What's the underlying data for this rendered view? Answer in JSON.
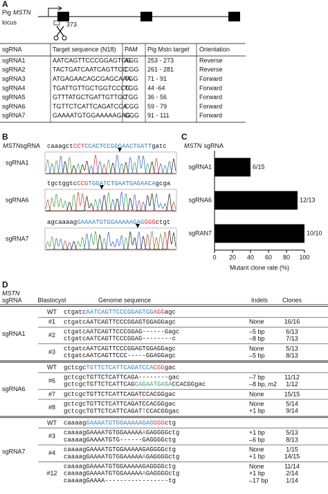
{
  "panel_a": {
    "label": "A",
    "species": "Pig",
    "gene": "MSTN",
    "locus": "locus",
    "site": "373",
    "table": {
      "headers": [
        "sgRNA",
        "Target sequence (N18)",
        "PAM",
        "Pig Mstn target",
        "Orientation"
      ],
      "rows": [
        [
          "sgRNA1",
          "AATCAGTTCCCGGAGTGG",
          "AGG",
          "253 - 273",
          "Reverse"
        ],
        [
          "sgRNA2",
          "TACTGATCAATCAGTTCC",
          "CGG",
          "261 - 281",
          "Reverse"
        ],
        [
          "sgRNA3",
          "ATGAGAACAGCGAGCAAA",
          "TGG",
          "71 - 91",
          "Forward"
        ],
        [
          "sgRNA4",
          "TGATTGTTGCTGGTCCCG",
          "TGG",
          "44 -64",
          "Forward"
        ],
        [
          "sgRNA5",
          "GTTTATGCTGATTGTTGC",
          "TGG",
          "36 - 56",
          "Forward"
        ],
        [
          "sgRNA6",
          "TGTTCTCATTCAGATCCA",
          "CGG",
          "59 - 79",
          "Forward"
        ],
        [
          "sgRNA7",
          "GAAAATGTGGAAAAAGAG",
          "GGG",
          "91 - 111",
          "Forward"
        ]
      ]
    }
  },
  "panel_b": {
    "label": "B",
    "gene": "MSTN",
    "header": "sgRNA",
    "traces": [
      {
        "name": "sgRNA1",
        "sequence": [
          {
            "text": "caaagct"
          },
          {
            "text": "CCT",
            "color": "#e0302a"
          },
          {
            "text": "CCACTCCGGGAACTGATT",
            "color": "#2b7fc0"
          },
          {
            "text": "gatc"
          }
        ]
      },
      {
        "name": "sgRNA6",
        "sequence": [
          {
            "text": "tgctggtc"
          },
          {
            "text": "CCG",
            "color": "#e0302a"
          },
          {
            "text": "TGGATCTGAATGAGAACA",
            "color": "#2b7fc0"
          },
          {
            "text": "gcga"
          }
        ]
      },
      {
        "name": "sgRNA7",
        "sequence": [
          {
            "text": "agcaaaag"
          },
          {
            "text": "GAAAATGTGGAAAAAGAG",
            "color": "#2b7fc0"
          },
          {
            "text": "GGG",
            "color": "#e0302a"
          },
          {
            "text": "ctgt"
          }
        ]
      }
    ]
  },
  "panel_c_label": "C",
  "chart_data": {
    "type": "bar",
    "orientation": "horizontal",
    "gene": "MSTN",
    "title": "sgRNA",
    "categories": [
      "sgRNA1",
      "sgRNA6",
      "sgRAN7"
    ],
    "values": [
      40,
      92.3,
      100
    ],
    "value_labels": [
      "6/15",
      "12/13",
      "10/10"
    ],
    "color": "#000000",
    "xlabel": "Mutant clone rate (%)",
    "xlim": [
      0,
      100
    ],
    "xticks": [
      0,
      20,
      40,
      60,
      80,
      100
    ]
  },
  "panel_d": {
    "label": "D",
    "gene": "MSTN",
    "headers": [
      "sgRNA",
      "Blastocyst",
      "Genome sequence",
      "Indels",
      "Clones"
    ],
    "groups": [
      {
        "sgrna": "sgRNA1",
        "blastocysts": [
          {
            "id": "WT",
            "alleles": [
              {
                "sequence": [
                  {
                    "text": "ctgatc"
                  },
                  {
                    "text": "AATCAGTTCCCGGAGTGG",
                    "color": "#2b7fc0"
                  },
                  {
                    "text": "AGG",
                    "color": "#e0302a"
                  },
                  {
                    "text": "agc"
                  }
                ]
              }
            ]
          },
          {
            "id": "#1",
            "alleles": [
              {
                "sequence": [
                  {
                    "text": "ctgatcAATCAGTTCCCGGAGTGGAGGagc"
                  }
                ],
                "indel": "None",
                "clones": "16/16"
              }
            ]
          },
          {
            "id": "#2",
            "alleles": [
              {
                "sequence": [
                  {
                    "text": "ctgatcAATCAGTTCCCGGAG------Gagc"
                  }
                ],
                "indel": "–5 bp",
                "clones": "6/13"
              },
              {
                "sequence": [
                  {
                    "text": "ctgatcAATCAGTTCCCGGAG--------c"
                  }
                ],
                "indel": "–8 bp",
                "clones": "7/13"
              }
            ]
          },
          {
            "id": "#3",
            "alleles": [
              {
                "sequence": [
                  {
                    "text": "ctgatcAATCAGTTCCCGGAGTGGAGGagc"
                  }
                ],
                "indel": "None",
                "clones": "5/13"
              },
              {
                "sequence": [
                  {
                    "text": "ctgatcAATCAGTTCCC-----GGAGGagc"
                  }
                ],
                "indel": "–5 bp",
                "clones": "8/13"
              }
            ]
          }
        ]
      },
      {
        "sgrna": "sgRNA6",
        "blastocysts": [
          {
            "id": "WT",
            "alleles": [
              {
                "sequence": [
                  {
                    "text": "gctcgc"
                  },
                  {
                    "text": "TGTTCTCATTCAGATCCA",
                    "color": "#2b7fc0"
                  },
                  {
                    "text": "CGG",
                    "color": "#e0302a"
                  },
                  {
                    "text": "gac"
                  }
                ]
              }
            ]
          },
          {
            "id": "#6",
            "alleles": [
              {
                "sequence": [
                  {
                    "text": "gctcgcTGTTCTCATTCAGA--------gac"
                  }
                ],
                "indel": "–7 bp",
                "clones": "11/12"
              },
              {
                "sequence": [
                  {
                    "text": "gctcgcTGTTCTCATTCAG"
                  },
                  {
                    "text": "CAGAATGAGA",
                    "color": "#2e9e5a"
                  },
                  {
                    "text": "CCACGGgac"
                  }
                ],
                "indel": "–8 bp, m2",
                "clones": "1/12"
              }
            ]
          },
          {
            "id": "#7",
            "alleles": [
              {
                "sequence": [
                  {
                    "text": "gctcgcTGTTCTCATTCAGATCCACGGgac"
                  }
                ],
                "indel": "None",
                "clones": "15/15"
              }
            ]
          },
          {
            "id": "#8",
            "alleles": [
              {
                "sequence": [
                  {
                    "text": "gctcgcTGTTCTCATTCAGATCCACGGgac"
                  }
                ],
                "indel": "None",
                "clones": "5/14"
              },
              {
                "sequence": [
                  {
                    "text": "gctcgcTGTTCTCATTCAGAT"
                  },
                  {
                    "text": "T",
                    "color": "#2e9e5a"
                  },
                  {
                    "text": "CCACGGgac"
                  }
                ],
                "indel": "+1 bp",
                "clones": "9/14"
              }
            ]
          }
        ]
      },
      {
        "sgrna": "sgRNA7",
        "blastocysts": [
          {
            "id": "WT",
            "alleles": [
              {
                "sequence": [
                  {
                    "text": "caaaag"
                  },
                  {
                    "text": "GAAAATGTGGAAAAAGAG",
                    "color": "#2b7fc0"
                  },
                  {
                    "text": "GGG",
                    "color": "#e0302a"
                  },
                  {
                    "text": "ctg"
                  }
                ]
              }
            ]
          },
          {
            "id": "#3",
            "alleles": [
              {
                "sequence": [
                  {
                    "text": "caaaagGAAAATGTGGAAAAA"
                  },
                  {
                    "text": "A",
                    "color": "#2e9e5a"
                  },
                  {
                    "text": "GAGGGGctg"
                  }
                ],
                "indel": "+1 bp",
                "clones": "5/13"
              },
              {
                "sequence": [
                  {
                    "text": "caaaagGAAAATGTG------GAGGGGctg"
                  }
                ],
                "indel": "–6 bp",
                "clones": "8/13"
              }
            ]
          },
          {
            "id": "#4",
            "alleles": [
              {
                "sequence": [
                  {
                    "text": "caaaagGAAAATGTGGAAAAAGAGGGGctg"
                  }
                ],
                "indel": "None",
                "clones": "1/15"
              },
              {
                "sequence": [
                  {
                    "text": "caaaagGAAAATGTGGAAAAA"
                  },
                  {
                    "text": "A",
                    "color": "#2e9e5a"
                  },
                  {
                    "text": "GAGGGGctg"
                  }
                ],
                "indel": "+1 bp",
                "clones": "14/15"
              }
            ]
          },
          {
            "id": "#12",
            "alleles": [
              {
                "sequence": [
                  {
                    "text": "caaaagGAAAATGTGGAAAAAGAGGGGctg"
                  }
                ],
                "indel": "None",
                "clones": "11/14"
              },
              {
                "sequence": [
                  {
                    "text": "caaaagGAAAATGTGGAAAAA"
                  },
                  {
                    "text": "A",
                    "color": "#2e9e5a"
                  },
                  {
                    "text": "GAGGGGctg"
                  }
                ],
                "indel": "+1 bp",
                "clones": "2/14"
              },
              {
                "sequence": [
                  {
                    "text": "caaaagGAAAA-----------------tg"
                  }
                ],
                "indel": "–17 bp",
                "clones": "1/14"
              }
            ]
          }
        ]
      }
    ]
  }
}
